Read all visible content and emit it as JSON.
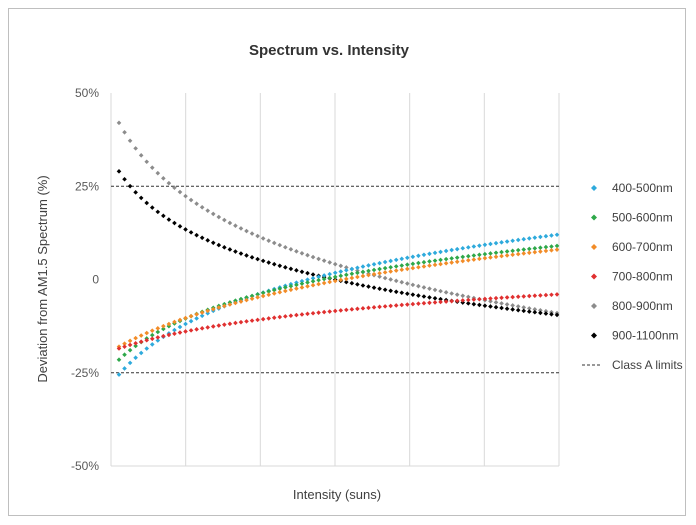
{
  "chart_data": {
    "type": "scatter",
    "title": "Spectrum vs. Intensity",
    "xlabel": "Intensity (suns)",
    "ylabel": "Deviation from AM1.5 Spectrum (%)",
    "ylim": [
      -50,
      50
    ],
    "y_ticks": [
      {
        "value": 50,
        "label": "50%"
      },
      {
        "value": 25,
        "label": "25%"
      },
      {
        "value": 0,
        "label": "0"
      },
      {
        "value": -25,
        "label": "-25%"
      },
      {
        "value": -50,
        "label": "-50%"
      }
    ],
    "x_gridlines": 6,
    "reference_lines": [
      25,
      -25
    ],
    "legend_position": "right",
    "series": [
      {
        "name": "400-500nm",
        "color": "#2eaadc",
        "start": -25.5,
        "end": 12.0,
        "k": 8
      },
      {
        "name": "500-600nm",
        "color": "#2ea84a",
        "start": -21.5,
        "end": 9.0,
        "k": 8
      },
      {
        "name": "600-700nm",
        "color": "#f28c28",
        "start": -18.0,
        "end": 8.0,
        "k": 4
      },
      {
        "name": "700-800nm",
        "color": "#e03030",
        "start": -18.5,
        "end": -4.0,
        "k": 5
      },
      {
        "name": "800-900nm",
        "color": "#8c8c8c",
        "start": 42.0,
        "end": -9.0,
        "k": 10
      },
      {
        "name": "900-1100nm",
        "color": "#000000",
        "start": 29.0,
        "end": -9.5,
        "k": 12
      }
    ],
    "limits_legend": "Class A limits",
    "points_per_series": 80
  }
}
